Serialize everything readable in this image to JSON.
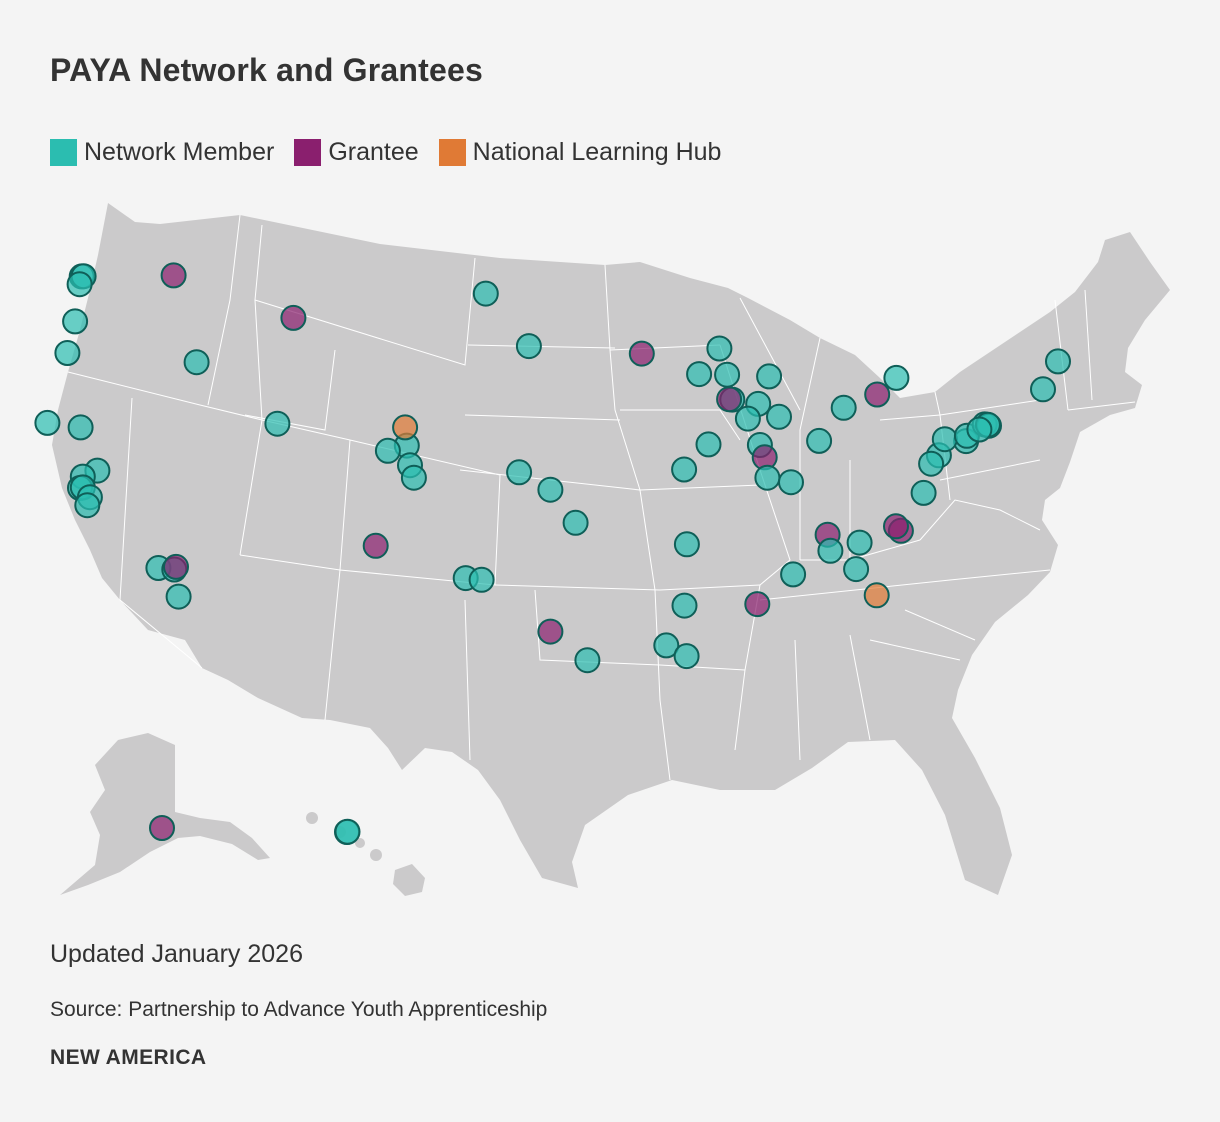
{
  "title": "PAYA Network and Grantees",
  "legend": [
    {
      "label": "Network Member",
      "color": "#2bbdb0"
    },
    {
      "label": "Grantee",
      "color": "#8a1f6e"
    },
    {
      "label": "National Learning Hub",
      "color": "#e07a35"
    }
  ],
  "map": {
    "region": "United States (contiguous, Alaska, Hawaii)",
    "land_color": "#cbcacb",
    "border_color": "#ffffff",
    "marker_stroke": "#0f5f58",
    "marker_opacity": 0.7,
    "markers": [
      {
        "cat": "network",
        "lon": -122.33,
        "lat": 47.61
      },
      {
        "cat": "network",
        "lon": -122.23,
        "lat": 47.62
      },
      {
        "cat": "network",
        "lon": -122.44,
        "lat": 47.25
      },
      {
        "cat": "grantee",
        "lon": -117.43,
        "lat": 47.66
      },
      {
        "cat": "network",
        "lon": -122.68,
        "lat": 45.52
      },
      {
        "cat": "network",
        "lon": -123.09,
        "lat": 44.05
      },
      {
        "cat": "network",
        "lon": -116.2,
        "lat": 43.62
      },
      {
        "cat": "grantee",
        "lon": -111.04,
        "lat": 45.68
      },
      {
        "cat": "network",
        "lon": -124.16,
        "lat": 40.8
      },
      {
        "cat": "network",
        "lon": -122.39,
        "lat": 40.59
      },
      {
        "cat": "network",
        "lon": -121.49,
        "lat": 38.58
      },
      {
        "cat": "network",
        "lon": -122.27,
        "lat": 38.3
      },
      {
        "cat": "network",
        "lon": -122.42,
        "lat": 37.77
      },
      {
        "cat": "network",
        "lon": -122.27,
        "lat": 37.8
      },
      {
        "cat": "network",
        "lon": -121.89,
        "lat": 37.34
      },
      {
        "cat": "network",
        "lon": -122.03,
        "lat": 36.97
      },
      {
        "cat": "network",
        "lon": -118.24,
        "lat": 34.05
      },
      {
        "cat": "network",
        "lon": -117.39,
        "lat": 33.98
      },
      {
        "cat": "grantee",
        "lon": -117.3,
        "lat": 34.1
      },
      {
        "cat": "network",
        "lon": -117.16,
        "lat": 32.72
      },
      {
        "cat": "network",
        "lon": -111.89,
        "lat": 40.76
      },
      {
        "cat": "network",
        "lon": -104.99,
        "lat": 39.74
      },
      {
        "cat": "network",
        "lon": -104.82,
        "lat": 38.83
      },
      {
        "cat": "network",
        "lon": -104.61,
        "lat": 38.25
      },
      {
        "cat": "hub",
        "lon": -105.08,
        "lat": 40.59
      },
      {
        "cat": "network",
        "lon": -106.0,
        "lat": 39.5
      },
      {
        "cat": "grantee",
        "lon": -106.65,
        "lat": 35.08
      },
      {
        "cat": "network",
        "lon": -100.78,
        "lat": 46.81
      },
      {
        "cat": "network",
        "lon": -98.48,
        "lat": 44.37
      },
      {
        "cat": "grantee",
        "lon": -92.46,
        "lat": 44.02
      },
      {
        "cat": "network",
        "lon": -99.0,
        "lat": 38.5
      },
      {
        "cat": "network",
        "lon": -97.33,
        "lat": 37.69
      },
      {
        "cat": "network",
        "lon": -95.99,
        "lat": 36.15
      },
      {
        "cat": "network",
        "lon": -101.85,
        "lat": 33.58
      },
      {
        "cat": "network",
        "lon": -101.0,
        "lat": 33.5
      },
      {
        "cat": "grantee",
        "lon": -97.33,
        "lat": 31.09
      },
      {
        "cat": "network",
        "lon": -95.36,
        "lat": 29.76
      },
      {
        "cat": "network",
        "lon": -89.4,
        "lat": 43.07
      },
      {
        "cat": "network",
        "lon": -88.32,
        "lat": 44.26
      },
      {
        "cat": "network",
        "lon": -87.91,
        "lat": 43.04
      },
      {
        "cat": "network",
        "lon": -87.63,
        "lat": 41.88
      },
      {
        "cat": "grantee",
        "lon": -87.8,
        "lat": 41.9
      },
      {
        "cat": "network",
        "lon": -88.9,
        "lat": 39.8
      },
      {
        "cat": "network",
        "lon": -90.2,
        "lat": 38.63
      },
      {
        "cat": "network",
        "lon": -86.25,
        "lat": 41.68
      },
      {
        "cat": "network",
        "lon": -86.8,
        "lat": 41.0
      },
      {
        "cat": "network",
        "lon": -85.14,
        "lat": 41.08
      },
      {
        "cat": "network",
        "lon": -86.16,
        "lat": 39.77
      },
      {
        "cat": "grantee",
        "lon": -85.9,
        "lat": 39.2
      },
      {
        "cat": "network",
        "lon": -85.76,
        "lat": 38.25
      },
      {
        "cat": "network",
        "lon": -84.5,
        "lat": 38.04
      },
      {
        "cat": "network",
        "lon": -83.0,
        "lat": 39.96
      },
      {
        "cat": "network",
        "lon": -81.69,
        "lat": 41.5
      },
      {
        "cat": "network",
        "lon": -85.67,
        "lat": 42.96
      },
      {
        "cat": "network",
        "lon": -78.88,
        "lat": 42.89
      },
      {
        "cat": "grantee",
        "lon": -79.9,
        "lat": 42.12
      },
      {
        "cat": "network",
        "lon": -75.16,
        "lat": 39.95
      },
      {
        "cat": "network",
        "lon": -76.61,
        "lat": 39.29
      },
      {
        "cat": "network",
        "lon": -77.03,
        "lat": 38.9
      },
      {
        "cat": "network",
        "lon": -76.3,
        "lat": 40.04
      },
      {
        "cat": "network",
        "lon": -75.12,
        "lat": 40.2
      },
      {
        "cat": "network",
        "lon": -74.17,
        "lat": 40.73
      },
      {
        "cat": "network",
        "lon": -73.94,
        "lat": 40.67
      },
      {
        "cat": "network",
        "lon": -74.0,
        "lat": 40.71
      },
      {
        "cat": "network",
        "lon": -71.06,
        "lat": 42.36
      },
      {
        "cat": "network",
        "lon": -70.26,
        "lat": 43.66
      },
      {
        "cat": "network",
        "lon": -74.45,
        "lat": 40.49
      },
      {
        "cat": "network",
        "lon": -77.43,
        "lat": 37.54
      },
      {
        "cat": "grantee",
        "lon": -78.64,
        "lat": 35.78
      },
      {
        "cat": "grantee",
        "lon": -78.9,
        "lat": 35.99
      },
      {
        "cat": "grantee",
        "lon": -82.55,
        "lat": 35.6
      },
      {
        "cat": "network",
        "lon": -82.4,
        "lat": 34.85
      },
      {
        "cat": "network",
        "lon": -81.03,
        "lat": 34.0
      },
      {
        "cat": "network",
        "lon": -80.84,
        "lat": 35.23
      },
      {
        "cat": "hub",
        "lon": -79.93,
        "lat": 32.78
      },
      {
        "cat": "network",
        "lon": -84.39,
        "lat": 33.75
      },
      {
        "cat": "grantee",
        "lon": -86.3,
        "lat": 32.37
      },
      {
        "cat": "network",
        "lon": -90.05,
        "lat": 35.15
      },
      {
        "cat": "network",
        "lon": -90.18,
        "lat": 32.3
      },
      {
        "cat": "network",
        "lon": -91.15,
        "lat": 30.45
      },
      {
        "cat": "network",
        "lon": -90.07,
        "lat": 29.95
      },
      {
        "cat": "network",
        "lon": -157.86,
        "lat": 21.31
      },
      {
        "cat": "network",
        "lon": -157.8,
        "lat": 21.35
      },
      {
        "cat": "grantee",
        "lon": -149.9,
        "lat": 61.22
      }
    ]
  },
  "footer": {
    "updated": "Updated January 2026",
    "source": "Source: Partnership to Advance Youth Apprenticeship",
    "brand": "NEW AMERICA"
  }
}
